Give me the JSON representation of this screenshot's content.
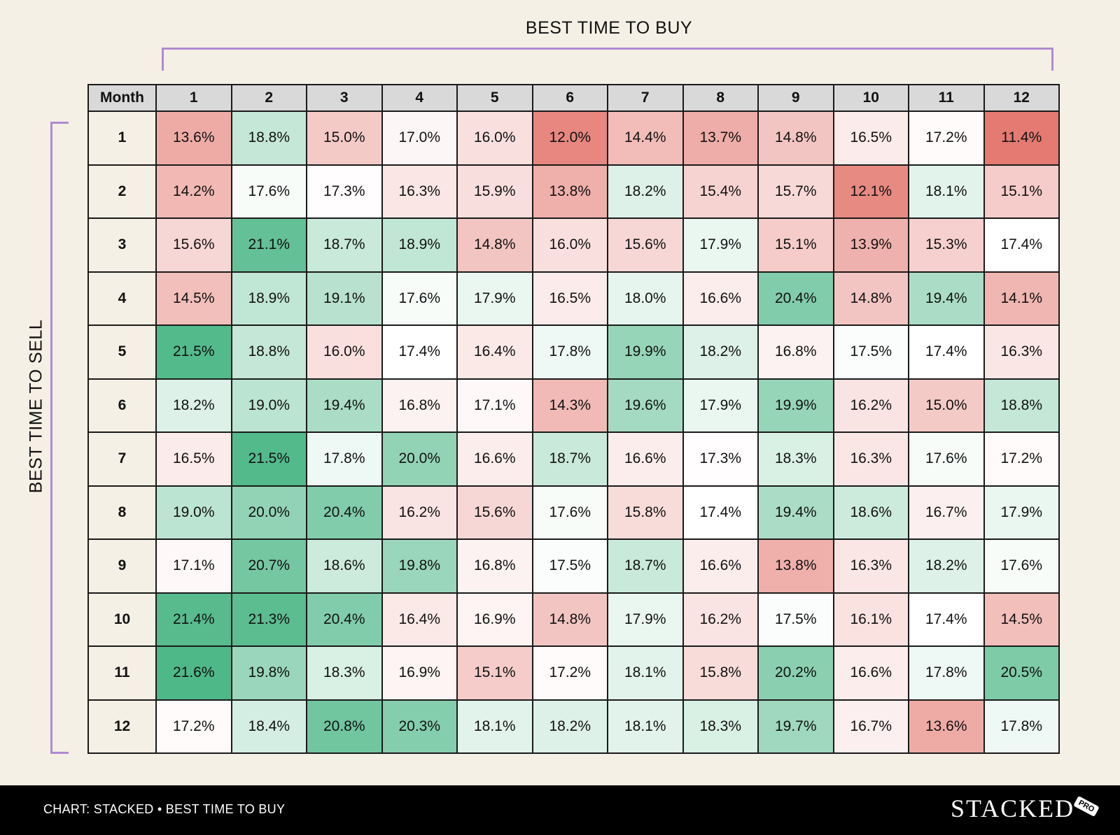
{
  "chart_data": {
    "type": "heatmap",
    "xlabel": "BEST TIME TO BUY",
    "ylabel": "BEST TIME TO SELL",
    "corner_label": "Month",
    "columns": [
      "1",
      "2",
      "3",
      "4",
      "5",
      "6",
      "7",
      "8",
      "9",
      "10",
      "11",
      "12"
    ],
    "rows": [
      {
        "label": "1",
        "values": [
          "13.6%",
          "18.8%",
          "15.0%",
          "17.0%",
          "16.0%",
          "12.0%",
          "14.4%",
          "13.7%",
          "14.8%",
          "16.5%",
          "17.2%",
          "11.4%"
        ]
      },
      {
        "label": "2",
        "values": [
          "14.2%",
          "17.6%",
          "17.3%",
          "16.3%",
          "15.9%",
          "13.8%",
          "18.2%",
          "15.4%",
          "15.7%",
          "12.1%",
          "18.1%",
          "15.1%"
        ]
      },
      {
        "label": "3",
        "values": [
          "15.6%",
          "21.1%",
          "18.7%",
          "18.9%",
          "14.8%",
          "16.0%",
          "15.6%",
          "17.9%",
          "15.1%",
          "13.9%",
          "15.3%",
          "17.4%"
        ]
      },
      {
        "label": "4",
        "values": [
          "14.5%",
          "18.9%",
          "19.1%",
          "17.6%",
          "17.9%",
          "16.5%",
          "18.0%",
          "16.6%",
          "20.4%",
          "14.8%",
          "19.4%",
          "14.1%"
        ]
      },
      {
        "label": "5",
        "values": [
          "21.5%",
          "18.8%",
          "16.0%",
          "17.4%",
          "16.4%",
          "17.8%",
          "19.9%",
          "18.2%",
          "16.8%",
          "17.5%",
          "17.4%",
          "16.3%"
        ]
      },
      {
        "label": "6",
        "values": [
          "18.2%",
          "19.0%",
          "19.4%",
          "16.8%",
          "17.1%",
          "14.3%",
          "19.6%",
          "17.9%",
          "19.9%",
          "16.2%",
          "15.0%",
          "18.8%"
        ]
      },
      {
        "label": "7",
        "values": [
          "16.5%",
          "21.5%",
          "17.8%",
          "20.0%",
          "16.6%",
          "18.7%",
          "16.6%",
          "17.3%",
          "18.3%",
          "16.3%",
          "17.6%",
          "17.2%"
        ]
      },
      {
        "label": "8",
        "values": [
          "19.0%",
          "20.0%",
          "20.4%",
          "16.2%",
          "15.6%",
          "17.6%",
          "15.8%",
          "17.4%",
          "19.4%",
          "18.6%",
          "16.7%",
          "17.9%"
        ]
      },
      {
        "label": "9",
        "values": [
          "17.1%",
          "20.7%",
          "18.6%",
          "19.8%",
          "16.8%",
          "17.5%",
          "18.7%",
          "16.6%",
          "13.8%",
          "16.3%",
          "18.2%",
          "17.6%"
        ]
      },
      {
        "label": "10",
        "values": [
          "21.4%",
          "21.3%",
          "20.4%",
          "16.4%",
          "16.9%",
          "14.8%",
          "17.9%",
          "16.2%",
          "17.5%",
          "16.1%",
          "17.4%",
          "14.5%"
        ]
      },
      {
        "label": "11",
        "values": [
          "21.6%",
          "19.8%",
          "18.3%",
          "16.9%",
          "15.1%",
          "17.2%",
          "18.1%",
          "15.8%",
          "20.2%",
          "16.6%",
          "17.8%",
          "20.5%"
        ]
      },
      {
        "label": "12",
        "values": [
          "17.2%",
          "18.4%",
          "20.8%",
          "20.3%",
          "18.1%",
          "18.2%",
          "18.1%",
          "18.3%",
          "19.7%",
          "16.7%",
          "13.6%",
          "17.8%"
        ]
      }
    ],
    "color_scale": {
      "low": "#e47a72",
      "mid": "#ffffff",
      "high": "#4fb888"
    }
  },
  "footer": {
    "source": "CHART: STACKED • BEST TIME TO BUY"
  },
  "brand": {
    "name": "STACKED",
    "badge": "PRO"
  },
  "colors": {
    "background": "#f4f0e5",
    "bracket": "#b18ad1",
    "footer_bg": "#000000"
  }
}
